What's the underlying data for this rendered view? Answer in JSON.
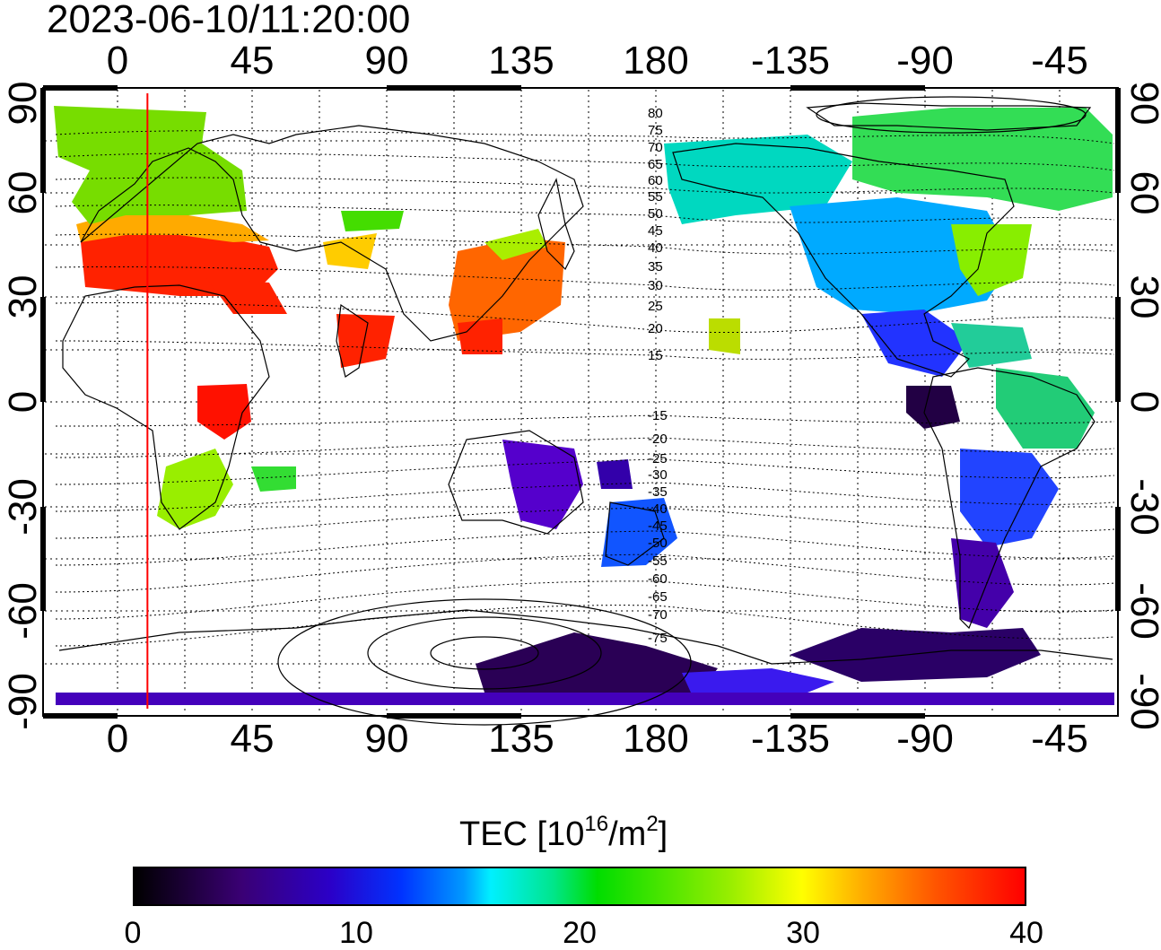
{
  "title": "2023-06-10/11:20:00",
  "top_ticks": [
    "0",
    "45",
    "90",
    "135",
    "180",
    "-135",
    "-90",
    "-45"
  ],
  "bottom_ticks": [
    "0",
    "45",
    "90",
    "135",
    "180",
    "-135",
    "-90",
    "-45"
  ],
  "left_ticks": [
    "90",
    "60",
    "30",
    "0",
    "-30",
    "-60",
    "-90"
  ],
  "right_ticks": [
    "90",
    "60",
    "30",
    "0",
    "-30",
    "-60",
    "-90"
  ],
  "contour_labels": [
    "80",
    "75",
    "70",
    "65",
    "60",
    "55",
    "50",
    "45",
    "40",
    "35",
    "30",
    "25",
    "20",
    "15",
    "-15",
    "-20",
    "-25",
    "-30",
    "-35",
    "-40",
    "-45",
    "-50",
    "-55",
    "-60",
    "-65",
    "-70",
    "-75"
  ],
  "colorbar": {
    "label": "TEC  [10",
    "label_sup": "16",
    "label_mid": "/m",
    "label_sup2": "2",
    "label_end": "]",
    "ticks": [
      "0",
      "10",
      "20",
      "30",
      "40"
    ],
    "range": [
      0,
      40
    ]
  },
  "terminator_longitude": 10,
  "colors": {
    "terminator": "#ff0000",
    "contour": "#000000",
    "grid": "#000000"
  }
}
